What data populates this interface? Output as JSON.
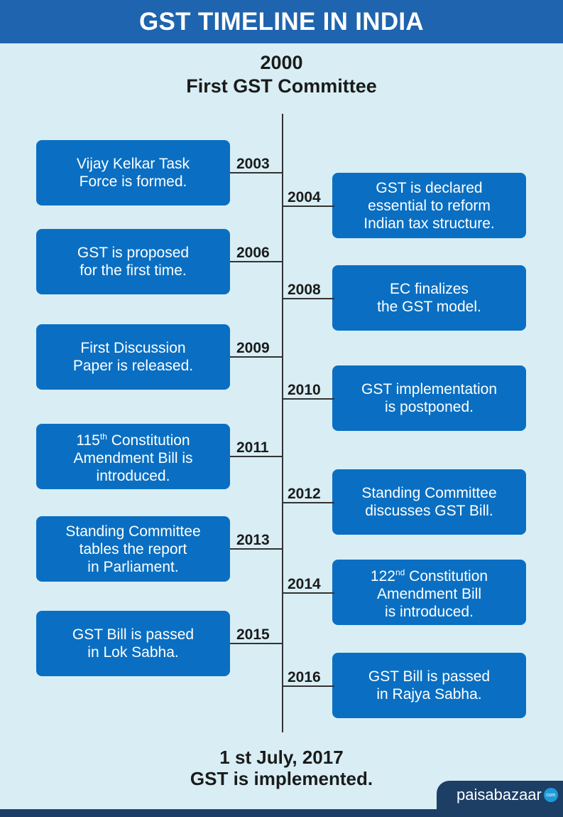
{
  "header": {
    "title": "GST TIMELINE IN INDIA"
  },
  "start": {
    "year": "2000",
    "label": "First GST Committee"
  },
  "events_left": [
    {
      "year": "2003",
      "text": "Vijay Kelkar Task\nForce is formed."
    },
    {
      "year": "2006",
      "text": "GST is proposed\nfor the first time."
    },
    {
      "year": "2009",
      "text": "First Discussion\nPaper is released."
    },
    {
      "year": "2011",
      "pre": "115",
      "sup": "th",
      "post": " Constitution\nAmendment Bill is\nintroduced."
    },
    {
      "year": "2013",
      "text": "Standing Committee\ntables the report\nin Parliament."
    },
    {
      "year": "2015",
      "text": "GST Bill is passed\nin Lok Sabha."
    }
  ],
  "events_right": [
    {
      "year": "2004",
      "text": "GST is declared\nessential to reform\nIndian tax structure."
    },
    {
      "year": "2008",
      "text": "EC finalizes\nthe GST model."
    },
    {
      "year": "2010",
      "text": "GST implementation\nis postponed."
    },
    {
      "year": "2012",
      "text": "Standing Committee\ndiscusses GST Bill."
    },
    {
      "year": "2014",
      "pre": "122",
      "sup": "nd",
      "post": " Constitution\nAmendment Bill\nis introduced."
    },
    {
      "year": "2016",
      "text": "GST Bill is passed\nin Rajya Sabha."
    }
  ],
  "end": {
    "date": "1 st July, 2017",
    "label": "GST is implemented."
  },
  "brand": {
    "name": "paisabazaar",
    "dot": "com"
  }
}
